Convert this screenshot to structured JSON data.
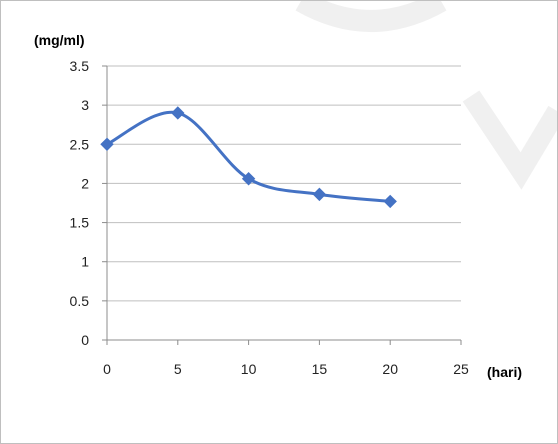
{
  "watermark": {
    "text": "SCIENCE AND TECHNOLOGY"
  },
  "chart_data": {
    "type": "line",
    "title": "",
    "xlabel": "(hari)",
    "ylabel": "(mg/ml)",
    "xlim": [
      0,
      25
    ],
    "ylim": [
      0,
      3.5
    ],
    "x_ticks": [
      "0",
      "5",
      "10",
      "15",
      "20",
      "25"
    ],
    "y_ticks": [
      "0",
      "0.5",
      "1",
      "1.5",
      "2",
      "2.5",
      "3",
      "3.5"
    ],
    "grid": true,
    "legend": "none",
    "series": [
      {
        "x": [
          0,
          5,
          10,
          15,
          20
        ],
        "y": [
          2.5,
          2.9,
          2.06,
          1.86,
          1.77
        ],
        "color": "#4472c4",
        "marker": "diamond"
      }
    ]
  }
}
